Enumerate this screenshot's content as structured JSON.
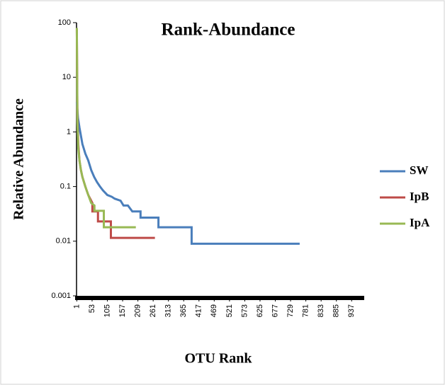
{
  "chart_data": {
    "type": "line",
    "title": "Rank-Abundance",
    "xlabel": "OTU Rank",
    "ylabel": "Relative Abundance",
    "xlim": [
      0,
      975
    ],
    "xticks": [
      1,
      53,
      105,
      157,
      209,
      261,
      313,
      365,
      417,
      469,
      521,
      573,
      625,
      677,
      729,
      781,
      833,
      885,
      937
    ],
    "ylim": [
      0.001,
      100
    ],
    "yticks": [
      0.001,
      0.01,
      0.1,
      1,
      10,
      100
    ],
    "yscale": "log",
    "legend": "right",
    "series": [
      {
        "name": "SW",
        "color": "#4a7ebb",
        "x": [
          1,
          5,
          10,
          20,
          30,
          40,
          50,
          60,
          70,
          80,
          90,
          105,
          120,
          130,
          150,
          160,
          175,
          190,
          218,
          218,
          279,
          279,
          392,
          392,
          760
        ],
        "values": [
          3.5,
          1.8,
          1.2,
          0.6,
          0.4,
          0.3,
          0.2,
          0.15,
          0.12,
          0.1,
          0.085,
          0.07,
          0.065,
          0.06,
          0.055,
          0.045,
          0.045,
          0.035,
          0.035,
          0.027,
          0.027,
          0.018,
          0.018,
          0.009,
          0.009
        ]
      },
      {
        "name": "IpB",
        "color": "#be4b48",
        "x": [
          1,
          3,
          6,
          10,
          15,
          20,
          30,
          40,
          54,
          54,
          73,
          73,
          117,
          117,
          267
        ],
        "values": [
          75,
          2,
          0.6,
          0.3,
          0.2,
          0.15,
          0.1,
          0.07,
          0.05,
          0.035,
          0.035,
          0.023,
          0.023,
          0.0115,
          0.0115
        ]
      },
      {
        "name": "IpA",
        "color": "#98b954",
        "x": [
          1,
          3,
          6,
          10,
          15,
          20,
          30,
          40,
          50,
          61,
          61,
          93,
          93,
          202
        ],
        "values": [
          80,
          1.5,
          0.5,
          0.3,
          0.2,
          0.15,
          0.1,
          0.07,
          0.05,
          0.045,
          0.036,
          0.036,
          0.018,
          0.018
        ]
      }
    ]
  }
}
